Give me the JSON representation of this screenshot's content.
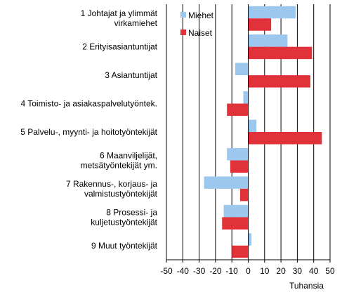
{
  "chart_data": {
    "type": "bar",
    "orientation": "horizontal",
    "categories": [
      [
        "1 Johtajat ja ylimmät",
        "virkamiehet"
      ],
      [
        "2 Erityisasiantuntijat"
      ],
      [
        "3 Asiantuntijat"
      ],
      [
        "4 Toimisto- ja asiakaspalvelutyöntek."
      ],
      [
        "5 Palvelu-, myynti- ja hoitotyöntekijät"
      ],
      [
        "6 Maanviljelijät,",
        "metsätyöntekijät ym."
      ],
      [
        "7 Rakennus-, korjaus- ja",
        "valmistustyöntekijät"
      ],
      [
        "8 Prosessi- ja",
        "kuljetustyöntekijät"
      ],
      [
        "9 Muut työntekijät"
      ]
    ],
    "series": [
      {
        "name": "Miehet",
        "color": "#9cc7ef",
        "values": [
          29,
          24,
          -8,
          -3,
          5,
          -13,
          -27,
          -15,
          2
        ]
      },
      {
        "name": "Naiset",
        "color": "#e03238",
        "values": [
          14,
          39,
          38,
          -13,
          45,
          -11,
          -5,
          -16,
          -10
        ]
      }
    ],
    "xlim": [
      -50,
      50
    ],
    "xticks": [
      -50,
      -40,
      -30,
      -20,
      -10,
      0,
      10,
      20,
      30,
      40,
      50
    ],
    "unit_label": "Tuhansia",
    "grid": true,
    "legend_position": "top-center"
  }
}
